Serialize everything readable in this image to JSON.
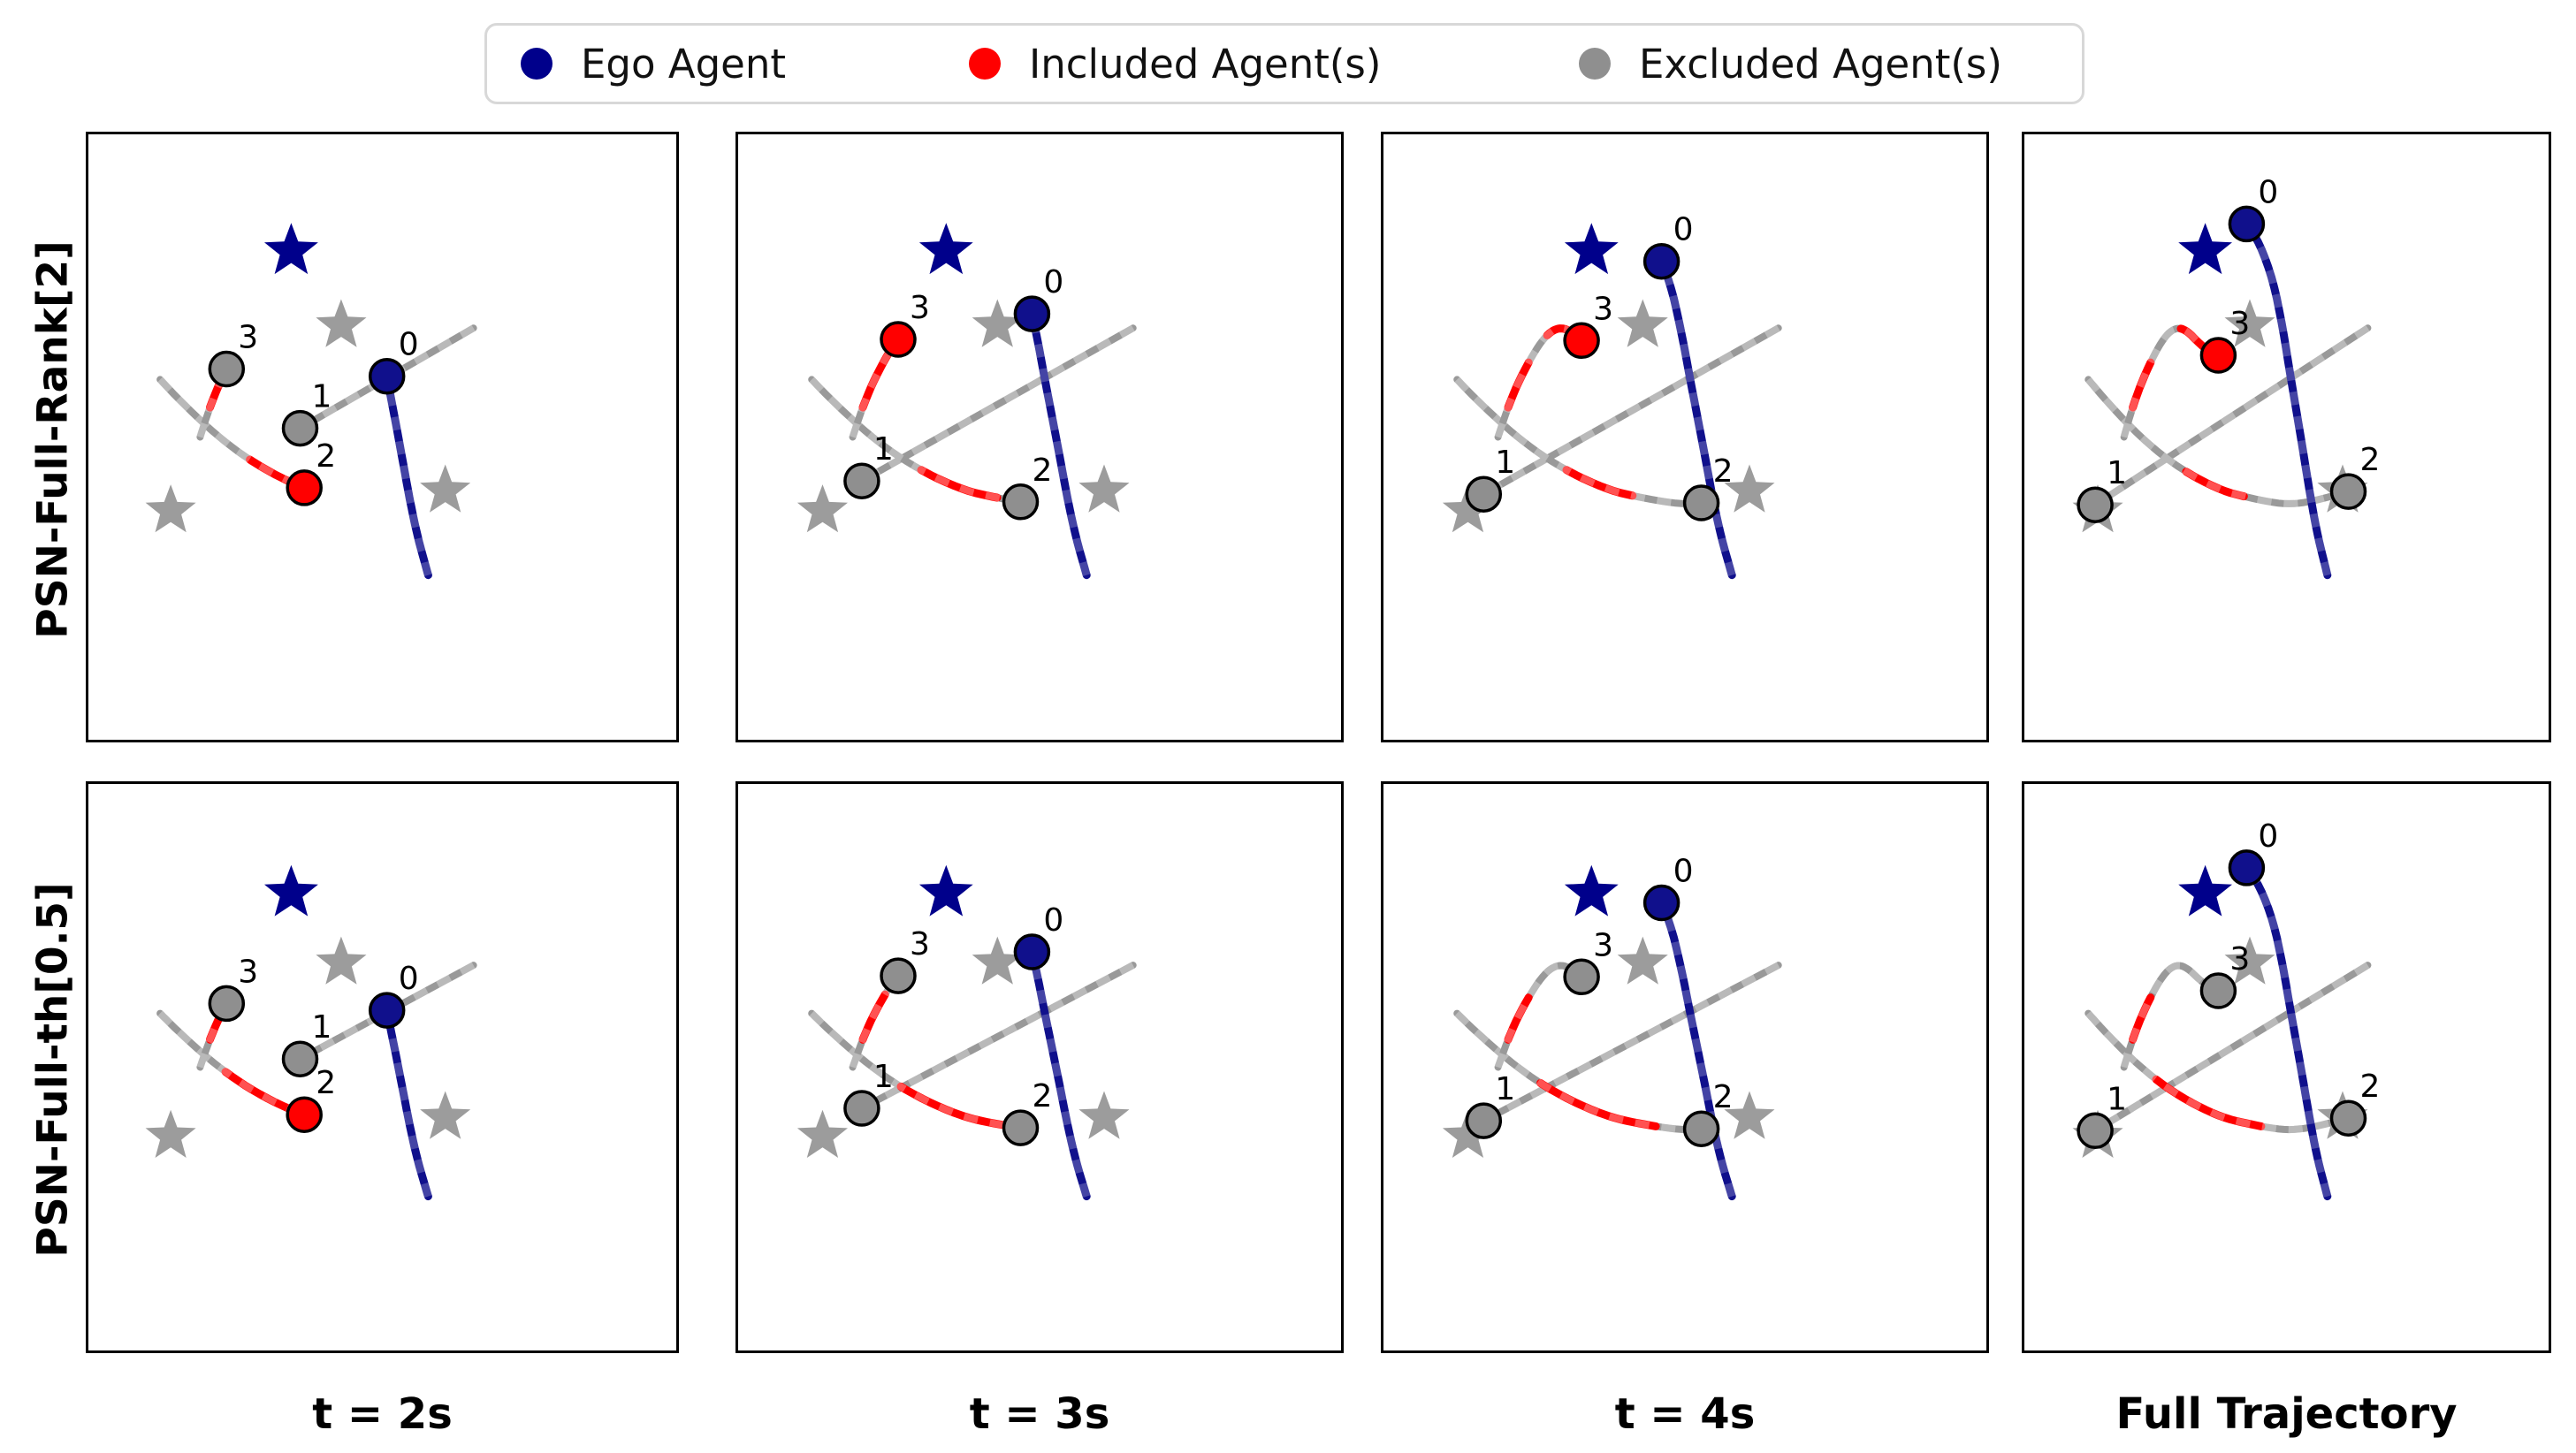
{
  "legend": {
    "items": [
      {
        "label": "Ego Agent",
        "color": "#00008b"
      },
      {
        "label": "Included Agent(s)",
        "color": "#ff0000"
      },
      {
        "label": "Excluded Agent(s)",
        "color": "#8f8f8f"
      }
    ]
  },
  "rows": [
    {
      "label": "PSN-Full-Rank[2]"
    },
    {
      "label": "PSN-Full-th[0.5]"
    }
  ],
  "cols": [
    {
      "label": "t = 2s"
    },
    {
      "label": "t = 3s"
    },
    {
      "label": "t = 4s"
    },
    {
      "label": "Full Trajectory"
    }
  ],
  "colors": {
    "ego": "#10108c",
    "included": "#ff0000",
    "excluded": "#8f8f8f",
    "traj_gray": "#999999",
    "star_gray": "#9c9c9c",
    "ego_star": "#00008b"
  },
  "chart_data": {
    "type": "trajectory-grid",
    "description": "Agent selection over time; circles are agent positions, stars are goals, red = included agents/segments, navy = ego agent, gray = excluded.",
    "agent_ids": [
      "0",
      "1",
      "2",
      "3"
    ],
    "stars": {
      "ego": [
        0.345,
        0.193
      ],
      "others": [
        [
          0.43,
          0.316
        ],
        [
          0.14,
          0.622
        ],
        [
          0.607,
          0.589
        ]
      ]
    },
    "paths": {
      "0": [
        [
          0.578,
          0.728
        ],
        [
          0.56,
          0.665
        ],
        [
          0.548,
          0.61
        ],
        [
          0.537,
          0.552
        ],
        [
          0.525,
          0.488
        ],
        [
          0.51,
          0.412
        ],
        [
          0.493,
          0.32
        ],
        [
          0.475,
          0.243
        ],
        [
          0.449,
          0.18
        ],
        [
          0.424,
          0.148
        ]
      ],
      "1": [
        [
          0.655,
          0.32
        ],
        [
          0.135,
          0.612
        ]
      ],
      "2": [
        [
          0.122,
          0.405
        ],
        [
          0.149,
          0.433
        ],
        [
          0.19,
          0.472
        ],
        [
          0.226,
          0.503
        ],
        [
          0.271,
          0.536
        ],
        [
          0.326,
          0.567
        ],
        [
          0.379,
          0.589
        ],
        [
          0.418,
          0.598
        ],
        [
          0.46,
          0.606
        ],
        [
          0.5,
          0.611
        ],
        [
          0.538,
          0.608
        ],
        [
          0.572,
          0.601
        ],
        [
          0.618,
          0.59
        ]
      ],
      "3": [
        [
          0.19,
          0.5
        ],
        [
          0.205,
          0.455
        ],
        [
          0.222,
          0.413
        ],
        [
          0.243,
          0.372
        ],
        [
          0.262,
          0.342
        ],
        [
          0.278,
          0.325
        ],
        [
          0.295,
          0.319
        ],
        [
          0.312,
          0.326
        ],
        [
          0.33,
          0.342
        ],
        [
          0.349,
          0.357
        ],
        [
          0.37,
          0.365
        ]
      ]
    },
    "panels": [
      [
        {
          "time": "t = 2s",
          "draw_to": {
            "0": 0.556,
            "1": 0.567,
            "2": 0.545,
            "3": 0.4
          },
          "included": [
            "2"
          ],
          "red": {
            "2": [
              [
                0.36,
                0.545
              ]
            ],
            "3": [
              [
                0.17,
                0.4
              ]
            ]
          }
        },
        {
          "time": "t = 3s",
          "draw_to": {
            "0": 0.73,
            "1": 0.865,
            "2": 0.73,
            "3": 0.59
          },
          "included": [
            "3"
          ],
          "red": {
            "2": [
              [
                0.42,
                0.66
              ]
            ],
            "3": [
              [
                0.17,
                0.59
              ]
            ]
          }
        },
        {
          "time": "t = 4s",
          "draw_to": {
            "0": 0.88,
            "1": 0.94,
            "2": 0.835,
            "3": 0.84
          },
          "included": [
            "3"
          ],
          "red": {
            "2": [
              [
                0.42,
                0.63
              ]
            ],
            "3": [
              [
                0.17,
                0.44
              ],
              [
                0.62,
                0.84
              ]
            ]
          }
        },
        {
          "time": "Full Trajectory",
          "draw_to": {
            "0": 1,
            "1": 1,
            "2": 1,
            "3": 1
          },
          "included": [
            "3"
          ],
          "red": {
            "2": [
              [
                0.43,
                0.64
              ]
            ],
            "3": [
              [
                0.17,
                0.44
              ],
              [
                0.72,
                1.0
              ]
            ]
          }
        }
      ],
      [
        {
          "time": "t = 2s",
          "draw_to": {
            "0": 0.556,
            "1": 0.567,
            "2": 0.545,
            "3": 0.4
          },
          "included": [
            "2"
          ],
          "red": {
            "2": [
              [
                0.27,
                0.545
              ]
            ],
            "3": [
              [
                0.17,
                0.4
              ]
            ]
          }
        },
        {
          "time": "t = 3s",
          "draw_to": {
            "0": 0.73,
            "1": 0.865,
            "2": 0.73,
            "3": 0.59
          },
          "included": [],
          "red": {
            "2": [
              [
                0.35,
                0.7
              ]
            ],
            "3": [
              [
                0.17,
                0.46
              ]
            ]
          }
        },
        {
          "time": "t = 4s",
          "draw_to": {
            "0": 0.88,
            "1": 0.94,
            "2": 0.835,
            "3": 0.84
          },
          "included": [],
          "red": {
            "2": [
              [
                0.33,
                0.7
              ]
            ],
            "3": [
              [
                0.17,
                0.44
              ]
            ]
          }
        },
        {
          "time": "Full Trajectory",
          "draw_to": {
            "0": 1,
            "1": 1,
            "2": 1,
            "3": 1
          },
          "included": [],
          "red": {
            "2": [
              [
                0.31,
                0.7
              ]
            ],
            "3": [
              [
                0.17,
                0.44
              ]
            ]
          }
        }
      ]
    ]
  }
}
